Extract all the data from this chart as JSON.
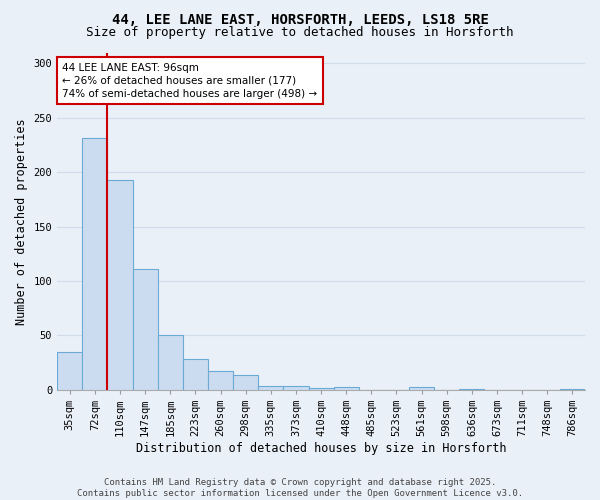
{
  "title_line1": "44, LEE LANE EAST, HORSFORTH, LEEDS, LS18 5RE",
  "title_line2": "Size of property relative to detached houses in Horsforth",
  "xlabel": "Distribution of detached houses by size in Horsforth",
  "ylabel": "Number of detached properties",
  "categories": [
    "35sqm",
    "72sqm",
    "110sqm",
    "147sqm",
    "185sqm",
    "223sqm",
    "260sqm",
    "298sqm",
    "335sqm",
    "373sqm",
    "410sqm",
    "448sqm",
    "485sqm",
    "523sqm",
    "561sqm",
    "598sqm",
    "636sqm",
    "673sqm",
    "711sqm",
    "748sqm",
    "786sqm"
  ],
  "values": [
    35,
    231,
    193,
    111,
    50,
    28,
    17,
    14,
    4,
    4,
    2,
    3,
    0,
    0,
    3,
    0,
    1,
    0,
    0,
    0,
    1
  ],
  "bar_color": "#ccdcf0",
  "bar_edge_color": "#6aaad4",
  "property_line_x": 1.5,
  "annotation_text": "44 LEE LANE EAST: 96sqm\n← 26% of detached houses are smaller (177)\n74% of semi-detached houses are larger (498) →",
  "annotation_box_color": "#ffffff",
  "annotation_box_edge_color": "#cc0000",
  "vline_color": "#cc0000",
  "ylim": [
    0,
    310
  ],
  "yticks": [
    0,
    50,
    100,
    150,
    200,
    250,
    300
  ],
  "background_color": "#eaf0f8",
  "grid_color": "#d0dce8",
  "footer_line1": "Contains HM Land Registry data © Crown copyright and database right 2025.",
  "footer_line2": "Contains public sector information licensed under the Open Government Licence v3.0.",
  "title_fontsize": 10,
  "subtitle_fontsize": 9,
  "tick_fontsize": 7.5,
  "label_fontsize": 8.5,
  "annotation_fontsize": 7.5,
  "footer_fontsize": 6.5
}
